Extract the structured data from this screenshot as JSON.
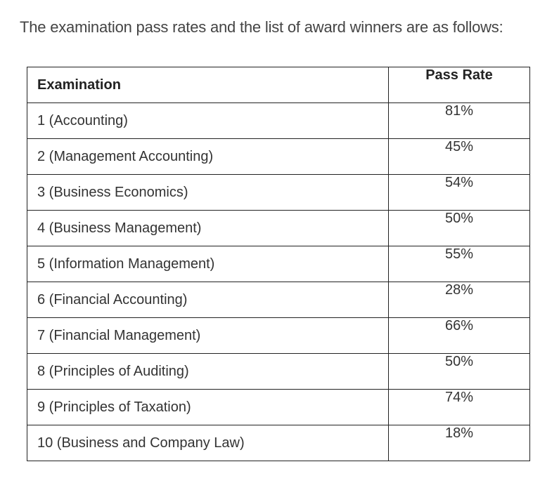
{
  "intro_text": "The examination pass rates and the list of award winners are as follows:",
  "table": {
    "headers": {
      "examination": "Examination",
      "pass_rate": "Pass Rate"
    },
    "rows": [
      {
        "examination": "1 (Accounting)",
        "pass_rate": "81%"
      },
      {
        "examination": "2 (Management Accounting)",
        "pass_rate": "45%"
      },
      {
        "examination": "3 (Business Economics)",
        "pass_rate": "54%"
      },
      {
        "examination": "4 (Business Management)",
        "pass_rate": "50%"
      },
      {
        "examination": "5 (Information Management)",
        "pass_rate": "55%"
      },
      {
        "examination": "6 (Financial Accounting)",
        "pass_rate": "28%"
      },
      {
        "examination": "7 (Financial Management)",
        "pass_rate": "66%"
      },
      {
        "examination": "8 (Principles of Auditing)",
        "pass_rate": "50%"
      },
      {
        "examination": "9 (Principles of Taxation)",
        "pass_rate": "74%"
      },
      {
        "examination": "10 (Business and Company Law)",
        "pass_rate": "18%"
      }
    ]
  }
}
